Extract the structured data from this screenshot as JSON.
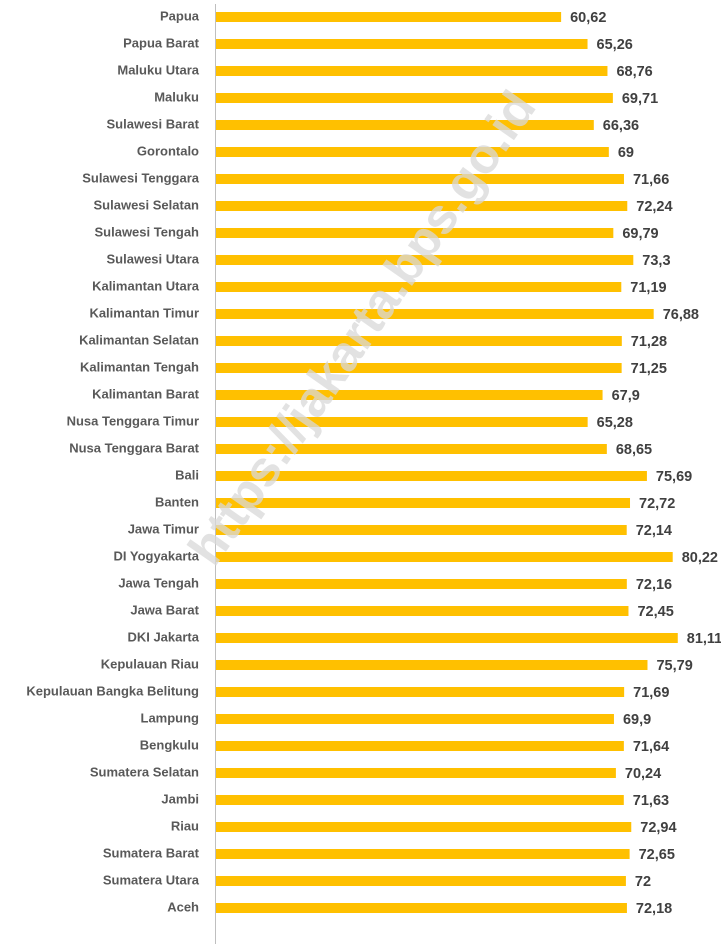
{
  "chart_data": {
    "type": "hbar",
    "watermark": "https://jakarta.bps.go.id",
    "categories": [
      "Papua",
      "Papua Barat",
      "Maluku Utara",
      "Maluku",
      "Sulawesi Barat",
      "Gorontalo",
      "Sulawesi Tenggara",
      "Sulawesi Selatan",
      "Sulawesi Tengah",
      "Sulawesi Utara",
      "Kalimantan Utara",
      "Kalimantan Timur",
      "Kalimantan Selatan",
      "Kalimantan Tengah",
      "Kalimantan Barat",
      "Nusa Tenggara Timur",
      "Nusa Tenggara Barat",
      "Bali",
      "Banten",
      "Jawa Timur",
      "DI Yogyakarta",
      "Jawa Tengah",
      "Jawa Barat",
      "DKI Jakarta",
      "Kepulauan Riau",
      "Kepulauan Bangka Belitung",
      "Lampung",
      "Bengkulu",
      "Sumatera Selatan",
      "Jambi",
      "Riau",
      "Sumatera Barat",
      "Sumatera Utara",
      "Aceh"
    ],
    "values": [
      60.62,
      65.26,
      68.76,
      69.71,
      66.36,
      69,
      71.66,
      72.24,
      69.79,
      73.3,
      71.19,
      76.88,
      71.28,
      71.25,
      67.9,
      65.28,
      68.65,
      75.69,
      72.72,
      72.14,
      80.22,
      72.16,
      72.45,
      81.11,
      75.79,
      71.69,
      69.9,
      71.64,
      70.24,
      71.63,
      72.94,
      72.65,
      72,
      72.18
    ],
    "value_labels": [
      "60,62",
      "65,26",
      "68,76",
      "69,71",
      "66,36",
      "69",
      "71,66",
      "72,24",
      "69,79",
      "73,3",
      "71,19",
      "76,88",
      "71,28",
      "71,25",
      "67,9",
      "65,28",
      "68,65",
      "75,69",
      "72,72",
      "72,14",
      "80,22",
      "72,16",
      "72,45",
      "81,11",
      "75,79",
      "71,69",
      "69,9",
      "71,64",
      "70,24",
      "71,63",
      "72,94",
      "72,65",
      "72",
      "72,18"
    ],
    "color": "#ffc000",
    "xlim": [
      0,
      88
    ]
  }
}
